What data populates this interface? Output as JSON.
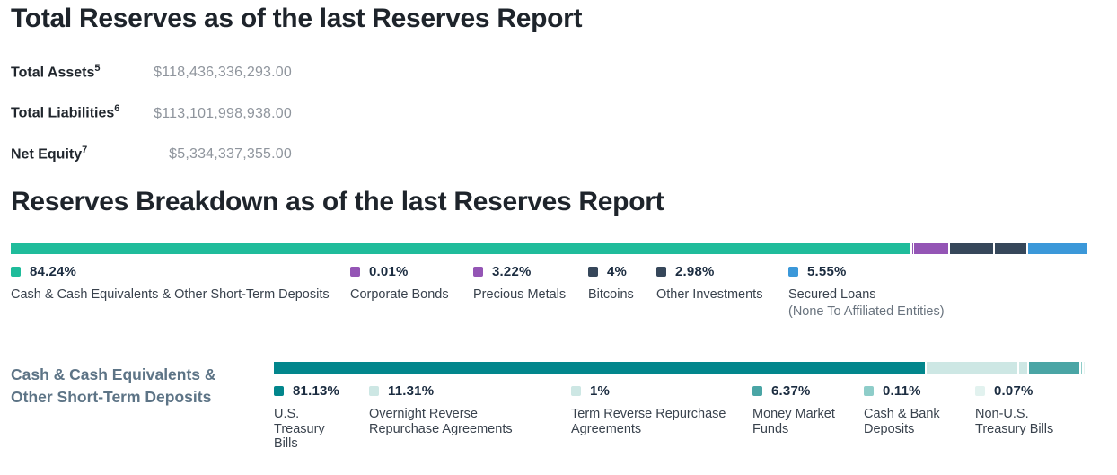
{
  "total_reserves": {
    "title": "Total Reserves as of the last Reserves Report",
    "rows": [
      {
        "label": "Total Assets",
        "footnote": "5",
        "value": "$118,436,336,293.00"
      },
      {
        "label": "Total Liabilities",
        "footnote": "6",
        "value": "$113,101,998,938.00"
      },
      {
        "label": "Net Equity",
        "footnote": "7",
        "value": "$5,334,337,355.00"
      }
    ]
  },
  "breakdown": {
    "title": "Reserves Breakdown as of the last Reserves Report",
    "cash_section_label": "Cash & Cash Equivalents & Other Short-Term Deposits"
  },
  "chart_data": [
    {
      "type": "bar",
      "variant": "stacked-horizontal",
      "title": "Reserves Breakdown as of the last Reserves Report",
      "unit": "%",
      "total": 100,
      "legend_position": "below",
      "segments": [
        {
          "id": "cash-and-equivalents",
          "label": "Cash & Cash Equivalents & Other Short-Term Deposits",
          "value": 84.24,
          "pct_label": "84.24%",
          "color": "#1fbc9b"
        },
        {
          "id": "corporate-bonds",
          "label": "Corporate Bonds",
          "value": 0.01,
          "pct_label": "0.01%",
          "color": "#9455b5"
        },
        {
          "id": "precious-metals",
          "label": "Precious Metals",
          "value": 3.22,
          "pct_label": "3.22%",
          "color": "#9455b5"
        },
        {
          "id": "bitcoins",
          "label": "Bitcoins",
          "value": 4,
          "pct_label": "4%",
          "color": "#36475a"
        },
        {
          "id": "other-investments",
          "label": "Other Investments",
          "value": 2.98,
          "pct_label": "2.98%",
          "color": "#36475a"
        },
        {
          "id": "secured-loans",
          "label": "Secured Loans",
          "sublabel": "(None To Affiliated Entities)",
          "value": 5.55,
          "pct_label": "5.55%",
          "color": "#3b98d9"
        }
      ]
    },
    {
      "type": "bar",
      "variant": "stacked-horizontal",
      "title": "Cash & Cash Equivalents & Other Short-Term Deposits",
      "unit": "%",
      "total": 100,
      "legend_position": "below",
      "segments": [
        {
          "id": "us-treasury-bills",
          "label": "U.S. Treasury Bills",
          "value": 81.13,
          "pct_label": "81.13%",
          "color": "#02868c"
        },
        {
          "id": "overnight-reverse-repo",
          "label": "Overnight Reverse Repurchase Agreements",
          "value": 11.31,
          "pct_label": "11.31%",
          "color": "#cde7e4"
        },
        {
          "id": "term-reverse-repo",
          "label": "Term Reverse Repurchase Agreements",
          "value": 1,
          "pct_label": "1%",
          "color": "#cde7e4"
        },
        {
          "id": "money-market-funds",
          "label": "Money Market Funds",
          "value": 6.37,
          "pct_label": "6.37%",
          "color": "#4aa5a5"
        },
        {
          "id": "cash-bank-deposits",
          "label": "Cash & Bank Deposits",
          "value": 0.11,
          "pct_label": "0.11%",
          "color": "#8ecdc9"
        },
        {
          "id": "non-us-treasury-bills",
          "label": "Non-U.S. Treasury Bills",
          "value": 0.07,
          "pct_label": "0.07%",
          "color": "#e2f2ef"
        }
      ]
    }
  ]
}
